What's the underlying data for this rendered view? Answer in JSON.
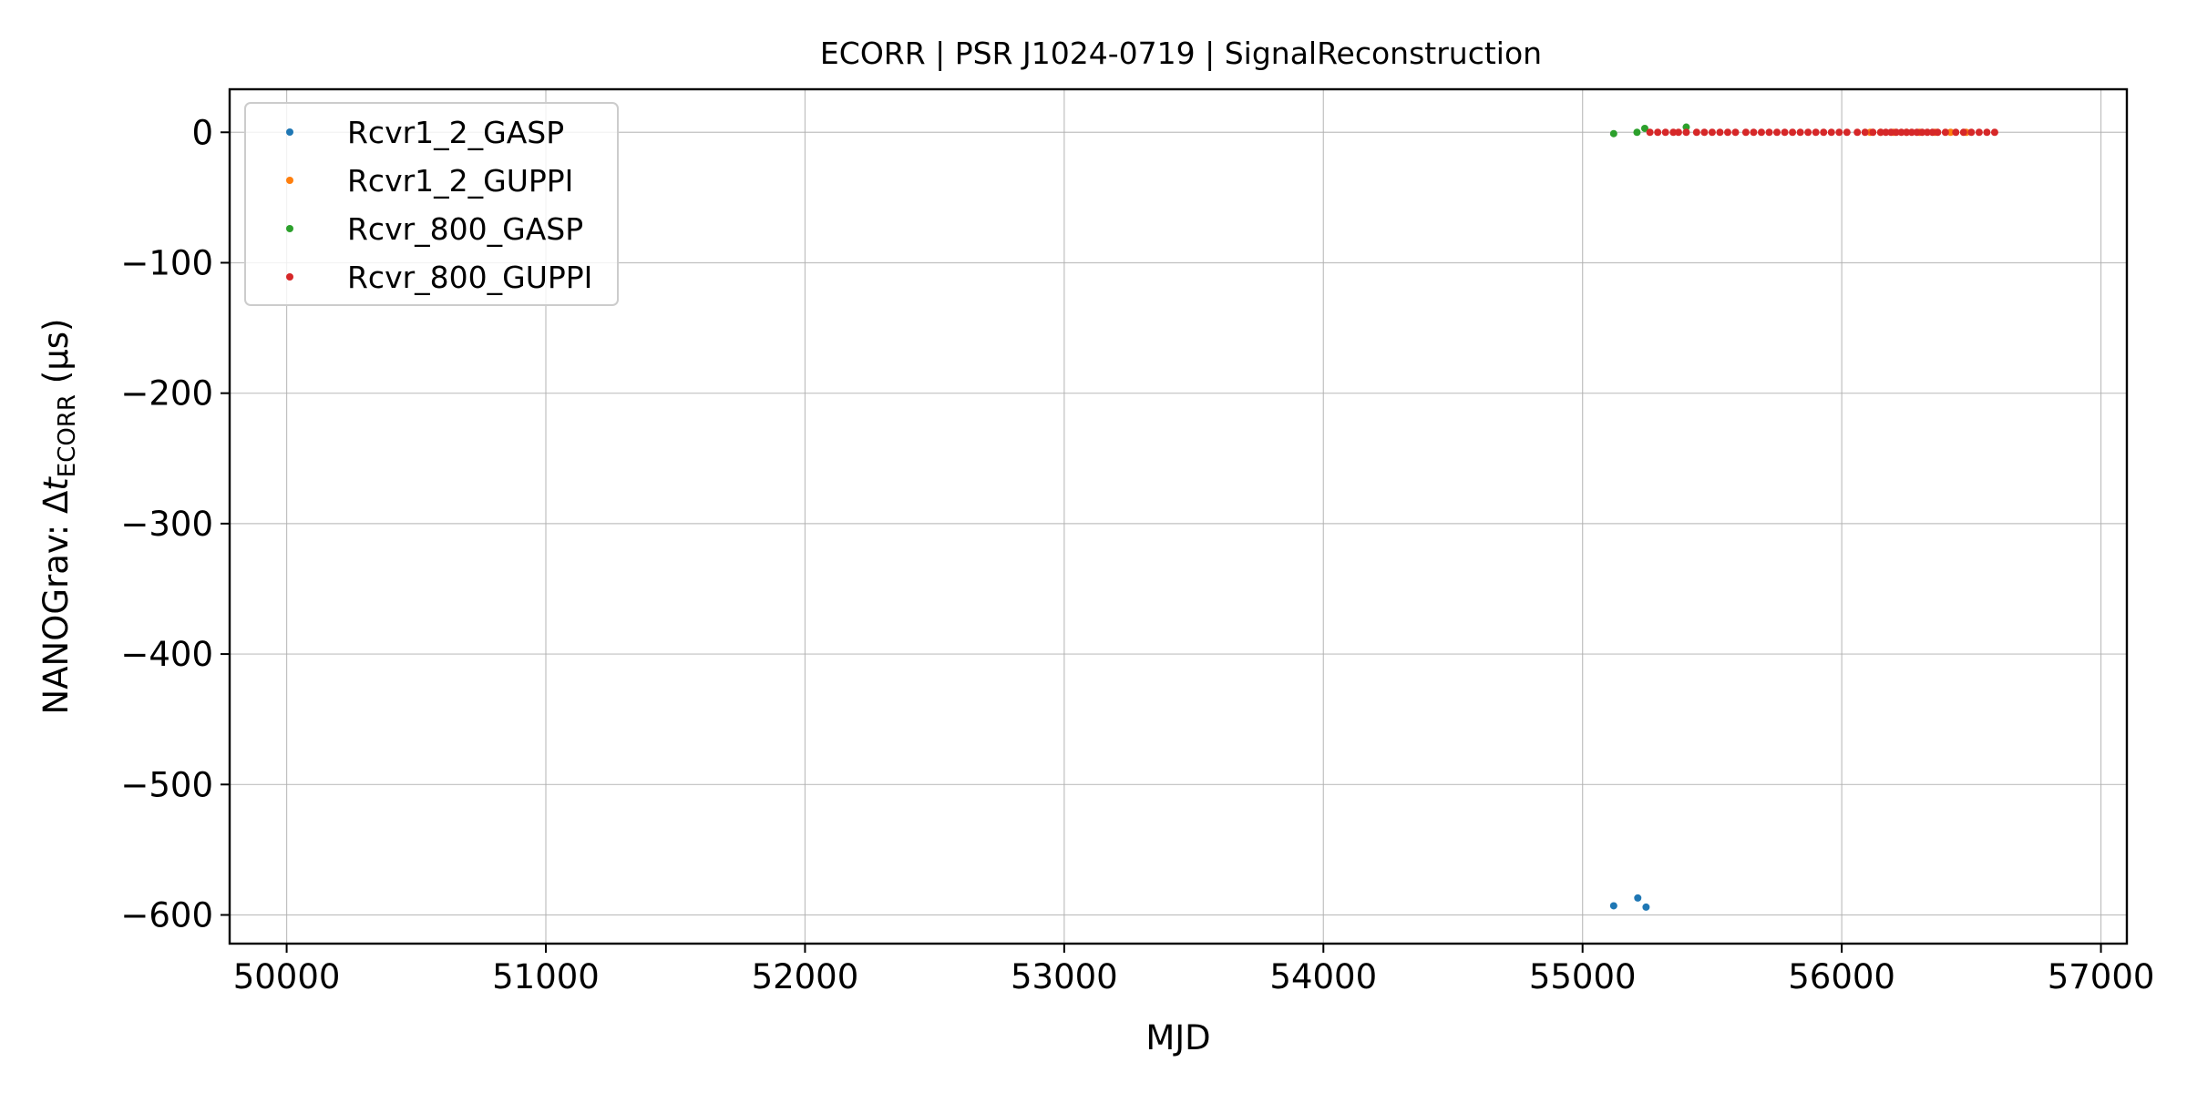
{
  "chart_data": {
    "type": "scatter",
    "title": "ECORR | PSR J1024-0719 | SignalReconstruction",
    "xlabel": "MJD",
    "ylabel_prefix": "NANOGrav: Δ",
    "ylabel_var": "t",
    "ylabel_sub": "ECORR",
    "ylabel_suffix": " (μs)",
    "xlim": [
      49780,
      57100
    ],
    "ylim": [
      -622,
      33
    ],
    "xticks": [
      50000,
      51000,
      52000,
      53000,
      54000,
      55000,
      56000,
      57000
    ],
    "yticks": [
      0,
      -100,
      -200,
      -300,
      -400,
      -500,
      -600
    ],
    "grid": true,
    "legend_position": "upper-left",
    "series": [
      {
        "name": "Rcvr1_2_GASP",
        "color": "#1f77b4",
        "x": [
          55120,
          55213,
          55245
        ],
        "y": [
          -593,
          -587,
          -594
        ]
      },
      {
        "name": "Rcvr1_2_GUPPI",
        "color": "#ff7f0e",
        "x": [
          56110,
          56150,
          56200,
          56250,
          56300,
          56360,
          56420,
          56480
        ],
        "y": [
          0,
          0,
          0,
          0,
          0,
          0,
          0,
          0
        ]
      },
      {
        "name": "Rcvr_800_GASP",
        "color": "#2ca02c",
        "x": [
          55120,
          55210,
          55240,
          55400
        ],
        "y": [
          -1,
          0,
          3,
          4
        ]
      },
      {
        "name": "Rcvr_800_GUPPI",
        "color": "#d62728",
        "x": [
          55260,
          55290,
          55320,
          55350,
          55370,
          55400,
          55440,
          55470,
          55500,
          55530,
          55560,
          55590,
          55630,
          55660,
          55690,
          55720,
          55750,
          55780,
          55810,
          55840,
          55870,
          55900,
          55930,
          55960,
          55990,
          56020,
          56060,
          56090,
          56120,
          56150,
          56170,
          56190,
          56210,
          56230,
          56250,
          56270,
          56290,
          56310,
          56330,
          56350,
          56370,
          56400,
          56440,
          56470,
          56500,
          56530,
          56560,
          56590
        ],
        "y": [
          0,
          0,
          0,
          0,
          0,
          0,
          0,
          0,
          0,
          0,
          0,
          0,
          0,
          0,
          0,
          0,
          0,
          0,
          0,
          0,
          0,
          0,
          0,
          0,
          0,
          0,
          0,
          0,
          0,
          0,
          0,
          0,
          0,
          0,
          0,
          0,
          0,
          0,
          0,
          0,
          0,
          0,
          0,
          0,
          0,
          0,
          0,
          0
        ]
      }
    ]
  }
}
